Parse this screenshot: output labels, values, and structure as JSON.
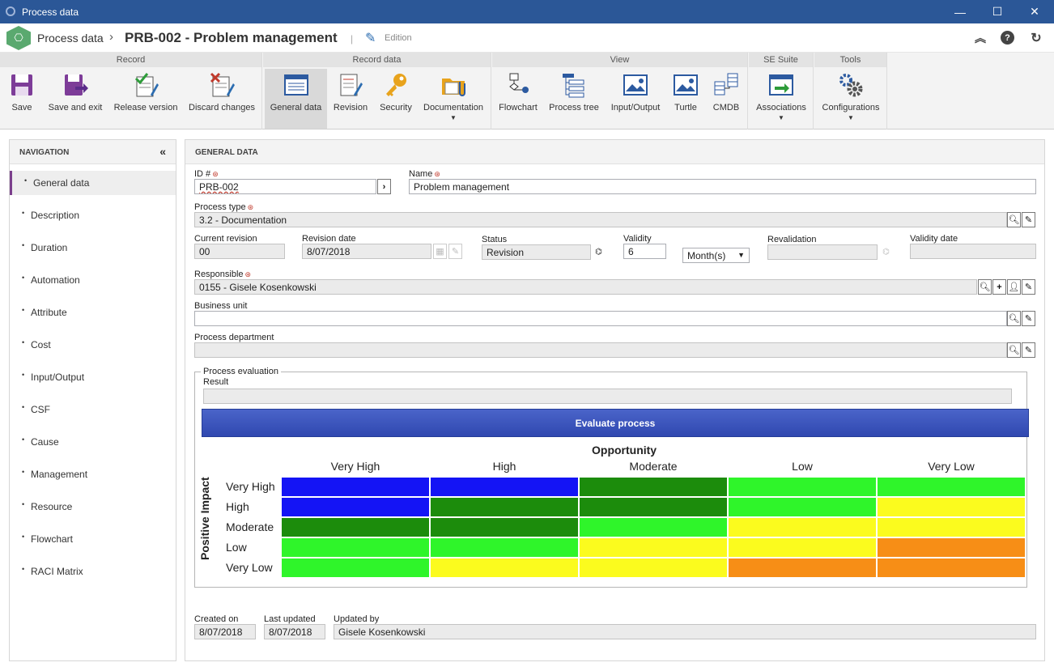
{
  "window": {
    "title": "Process data",
    "minimize": "—",
    "maximize": "☐",
    "close": "✕"
  },
  "header": {
    "breadcrumb_root": "Process data",
    "breadcrumb_sep": "›",
    "record_title": "PRB-002 - Problem management",
    "separator": "|",
    "mode": "Edition"
  },
  "ribbon": {
    "groups": [
      {
        "label": "Record",
        "buttons": [
          {
            "label": "Save",
            "icon": "save-icon"
          },
          {
            "label": "Save and exit",
            "icon": "save-exit-icon"
          },
          {
            "label": "Release version",
            "icon": "release-version-icon"
          },
          {
            "label": "Discard changes",
            "icon": "discard-changes-icon"
          }
        ]
      },
      {
        "label": "Record data",
        "buttons": [
          {
            "label": "General data",
            "icon": "general-data-icon",
            "selected": true
          },
          {
            "label": "Revision",
            "icon": "revision-icon"
          },
          {
            "label": "Security",
            "icon": "key-icon"
          },
          {
            "label": "Documentation",
            "icon": "folder-icon",
            "dropdown": true
          }
        ]
      },
      {
        "label": "View",
        "buttons": [
          {
            "label": "Flowchart",
            "icon": "flowchart-icon"
          },
          {
            "label": "Process tree",
            "icon": "process-tree-icon"
          },
          {
            "label": "Input/Output",
            "icon": "input-output-icon"
          },
          {
            "label": "Turtle",
            "icon": "turtle-icon"
          },
          {
            "label": "CMDB",
            "icon": "cmdb-icon"
          }
        ]
      },
      {
        "label": "SE Suite",
        "buttons": [
          {
            "label": "Associations",
            "icon": "associations-icon",
            "dropdown": true
          }
        ]
      },
      {
        "label": "Tools",
        "buttons": [
          {
            "label": "Configurations",
            "icon": "gears-icon",
            "dropdown": true
          }
        ]
      }
    ]
  },
  "nav": {
    "title": "NAVIGATION",
    "collapse": "«",
    "items": [
      "General data",
      "Description",
      "Duration",
      "Automation",
      "Attribute",
      "Cost",
      "Input/Output",
      "CSF",
      "Cause",
      "Management",
      "Resource",
      "Flowchart",
      "RACI Matrix"
    ],
    "active": "General data"
  },
  "main": {
    "title": "GENERAL DATA",
    "id_label": "ID #",
    "id_value": "PRB-002",
    "name_label": "Name",
    "name_value": "Problem management",
    "process_type_label": "Process type",
    "process_type_value": "3.2 - Documentation",
    "current_revision_label": "Current revision",
    "current_revision_value": "00",
    "revision_date_label": "Revision date",
    "revision_date_value": "8/07/2018",
    "status_label": "Status",
    "status_value": "Revision",
    "validity_label": "Validity",
    "validity_value": "6",
    "validity_unit": "Month(s)",
    "revalidation_label": "Revalidation",
    "revalidation_value": "",
    "validity_date_label": "Validity date",
    "validity_date_value": "",
    "responsible_label": "Responsible",
    "responsible_value": "0155 - Gisele Kosenkowski",
    "business_unit_label": "Business unit",
    "business_unit_value": "",
    "process_department_label": "Process department",
    "process_department_value": "",
    "created_on_label": "Created on",
    "created_on_value": "8/07/2018",
    "last_updated_label": "Last updated",
    "last_updated_value": "8/07/2018",
    "updated_by_label": "Updated by",
    "updated_by_value": "Gisele Kosenkowski"
  },
  "evaluation": {
    "legend": "Process evaluation",
    "result_label": "Result",
    "result_value": "",
    "button": "Evaluate process",
    "matrix_title": "Opportunity",
    "row_axis": "Positive Impact",
    "columns": [
      "Very High",
      "High",
      "Moderate",
      "Low",
      "Very Low"
    ],
    "rows": [
      "Very High",
      "High",
      "Moderate",
      "Low",
      "Very Low"
    ],
    "colors": {
      "blue": "#1414f5",
      "dark_green": "#1c8c0c",
      "green": "#2ff52a",
      "yellow": "#fbfb1e",
      "orange": "#f78e16"
    },
    "grid": [
      [
        "blue",
        "blue",
        "dark_green",
        "green",
        "green"
      ],
      [
        "blue",
        "dark_green",
        "dark_green",
        "green",
        "yellow"
      ],
      [
        "dark_green",
        "dark_green",
        "green",
        "yellow",
        "yellow"
      ],
      [
        "green",
        "green",
        "yellow",
        "yellow",
        "orange"
      ],
      [
        "green",
        "yellow",
        "yellow",
        "orange",
        "orange"
      ]
    ]
  }
}
